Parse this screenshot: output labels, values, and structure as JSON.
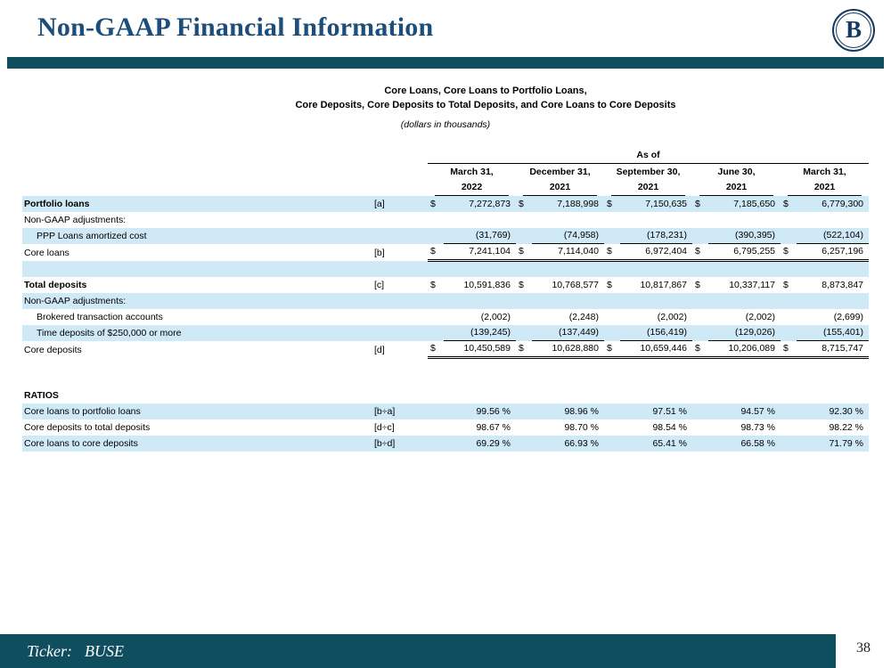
{
  "slide": {
    "title": "Non-GAAP Financial Information",
    "page_number": "38",
    "footer": {
      "ticker_label": "Ticker:",
      "ticker_value": "BUSE"
    },
    "logo_letter": "B"
  },
  "table": {
    "heading_line1": "Core Loans, Core Loans to Portfolio Loans,",
    "heading_line2": "Core Deposits, Core Deposits to Total Deposits, and Core Loans to Core Deposits",
    "subheading": "(dollars in thousands)",
    "as_of_label": "As of",
    "currency_symbol": "$",
    "columns": [
      {
        "line1": "March 31,",
        "line2": "2022"
      },
      {
        "line1": "December 31,",
        "line2": "2021"
      },
      {
        "line1": "September 30,",
        "line2": "2021"
      },
      {
        "line1": "June 30,",
        "line2": "2021"
      },
      {
        "line1": "March 31,",
        "line2": "2021"
      }
    ],
    "rows": [
      {
        "label": "Portfolio loans",
        "ref": "[a]",
        "dollar": true,
        "values": [
          "7,272,873",
          "7,188,998",
          "7,150,635",
          "7,185,650",
          "6,779,300"
        ],
        "style": "shaded bold-label"
      },
      {
        "label": "Non-GAAP adjustments:",
        "ref": "",
        "dollar": false,
        "values": [
          "",
          "",
          "",
          "",
          ""
        ],
        "style": ""
      },
      {
        "label": "PPP Loans amortized cost",
        "ref": "",
        "dollar": false,
        "values": [
          "(31,769)",
          "(74,958)",
          "(178,231)",
          "(390,395)",
          "(522,104)"
        ],
        "style": "shaded indent underline"
      },
      {
        "label": "Core loans",
        "ref": "[b]",
        "dollar": true,
        "values": [
          "7,241,104",
          "7,114,040",
          "6,972,404",
          "6,795,255",
          "6,257,196"
        ],
        "style": "dbl"
      },
      {
        "label": "",
        "ref": "",
        "dollar": false,
        "values": [
          "",
          "",
          "",
          "",
          ""
        ],
        "style": "shaded"
      },
      {
        "label": "Total deposits",
        "ref": "[c]",
        "dollar": true,
        "values": [
          "10,591,836",
          "10,768,577",
          "10,817,867",
          "10,337,117",
          "8,873,847"
        ],
        "style": "bold-label"
      },
      {
        "label": "Non-GAAP adjustments:",
        "ref": "",
        "dollar": false,
        "values": [
          "",
          "",
          "",
          "",
          ""
        ],
        "style": "shaded"
      },
      {
        "label": "Brokered transaction accounts",
        "ref": "",
        "dollar": false,
        "values": [
          "(2,002)",
          "(2,248)",
          "(2,002)",
          "(2,002)",
          "(2,699)"
        ],
        "style": "indent"
      },
      {
        "label": "Time deposits of $250,000 or more",
        "ref": "",
        "dollar": false,
        "values": [
          "(139,245)",
          "(137,449)",
          "(156,419)",
          "(129,026)",
          "(155,401)"
        ],
        "style": "shaded indent underline"
      },
      {
        "label": "Core deposits",
        "ref": "[d]",
        "dollar": true,
        "values": [
          "10,450,589",
          "10,628,880",
          "10,659,446",
          "10,206,089",
          "8,715,747"
        ],
        "style": "dbl"
      },
      {
        "label": "",
        "ref": "",
        "dollar": false,
        "values": [
          "",
          "",
          "",
          "",
          ""
        ],
        "style": "spacer2"
      },
      {
        "label": "RATIOS",
        "ref": "",
        "dollar": false,
        "values": [
          "",
          "",
          "",
          "",
          ""
        ],
        "style": "bold-label"
      },
      {
        "label": "Core loans to portfolio loans",
        "ref": "[b÷a]",
        "dollar": false,
        "values": [
          "99.56 %",
          "98.96 %",
          "97.51 %",
          "94.57 %",
          "92.30 %"
        ],
        "style": "shaded"
      },
      {
        "label": "Core deposits to total deposits",
        "ref": "[d÷c]",
        "dollar": false,
        "values": [
          "98.67 %",
          "98.70 %",
          "98.54 %",
          "98.73 %",
          "98.22 %"
        ],
        "style": ""
      },
      {
        "label": "Core loans to core deposits",
        "ref": "[b÷d]",
        "dollar": false,
        "values": [
          "69.29 %",
          "66.93 %",
          "65.41 %",
          "66.58 %",
          "71.79 %"
        ],
        "style": "shaded"
      }
    ]
  }
}
